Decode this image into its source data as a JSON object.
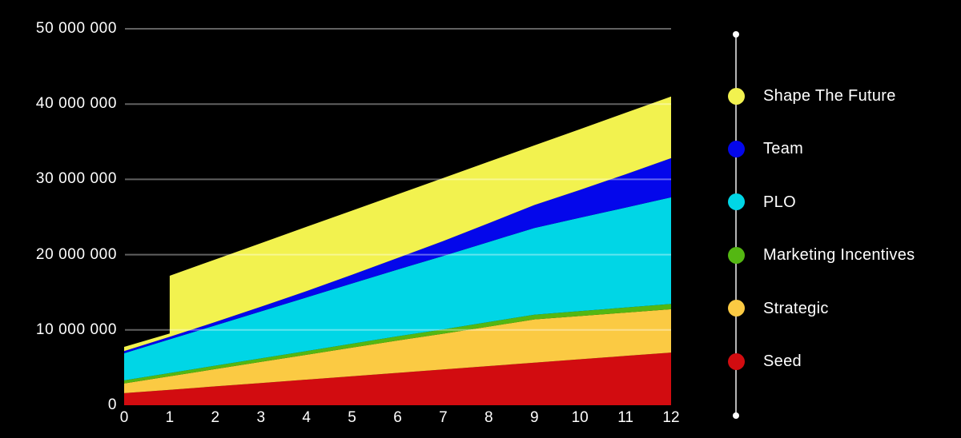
{
  "background_color": "#000000",
  "text_color": "#ffffff",
  "grid_line_color": "rgba(255,255,255,0.38)",
  "legend": {
    "line_color": "#b5b5b5",
    "endpoint_dot_color": "#ffffff",
    "items_top_to_bottom": [
      {
        "label": "Shape The Future",
        "color": "#f2f24f"
      },
      {
        "label": "Team",
        "color": "#0407eb"
      },
      {
        "label": "PLO",
        "color": "#00d6e6"
      },
      {
        "label": "Marketing Incentives",
        "color": "#54b712"
      },
      {
        "label": "Strategic",
        "color": "#fbca43"
      },
      {
        "label": "Seed",
        "color": "#d20c10"
      }
    ]
  },
  "chart_data": {
    "type": "area",
    "stacked": true,
    "title": "",
    "xlabel": "",
    "ylabel": "",
    "grid": true,
    "legend_position": "right",
    "xlim": [
      0,
      12
    ],
    "ylim": [
      0,
      50000000
    ],
    "x": [
      0,
      1,
      2,
      3,
      4,
      5,
      6,
      7,
      8,
      9,
      10,
      11,
      12
    ],
    "x_tick_labels": [
      "0",
      "1",
      "2",
      "3",
      "4",
      "5",
      "6",
      "7",
      "8",
      "9",
      "10",
      "11",
      "12"
    ],
    "y_ticks": [
      {
        "value": 50000000,
        "label": "50 000 000"
      },
      {
        "value": 40000000,
        "label": "40 000 000"
      },
      {
        "value": 30000000,
        "label": "30 000 000"
      },
      {
        "value": 20000000,
        "label": "20 000 000"
      },
      {
        "value": 10000000,
        "label": "10 000 000"
      },
      {
        "value": 0,
        "label": "0"
      }
    ],
    "series_bottom_to_top": [
      {
        "name": "Seed",
        "color": "#d20c10",
        "values": [
          1600000,
          2050000,
          2500000,
          2950000,
          3400000,
          3850000,
          4300000,
          4750000,
          5200000,
          5650000,
          6100000,
          6550000,
          7000000
        ]
      },
      {
        "name": "Strategic",
        "color": "#fbca43",
        "values": [
          1300000,
          1800000,
          2300000,
          2800000,
          3300000,
          3800000,
          4300000,
          4750000,
          5250000,
          5750000,
          5750000,
          5750000,
          5750000
        ]
      },
      {
        "name": "Marketing Incentives",
        "color": "#54b712",
        "values": [
          400000,
          425000,
          450000,
          475000,
          500000,
          525000,
          550000,
          575000,
          600000,
          625000,
          650000,
          675000,
          700000
        ]
      },
      {
        "name": "PLO",
        "color": "#00d6e6",
        "values": [
          3600000,
          4480000,
          5360000,
          6240000,
          7120000,
          8000000,
          8880000,
          9760000,
          10640000,
          11520000,
          12400000,
          13280000,
          14160000
        ]
      },
      {
        "name": "Team",
        "color": "#0407eb",
        "values": [
          300000,
          330000,
          440000,
          610000,
          840000,
          1150000,
          1520000,
          1970000,
          2480000,
          3050000,
          3700000,
          4410000,
          5200000
        ]
      },
      {
        "name": "Shape The Future",
        "color": "#f2f24f",
        "jump_month": 1,
        "pre_jump_value": 450000,
        "values": [
          550000,
          8115000,
          8310000,
          8455000,
          8530000,
          8525000,
          8470000,
          8375000,
          8180000,
          7915000,
          8070000,
          8175000,
          8190000
        ]
      }
    ]
  }
}
